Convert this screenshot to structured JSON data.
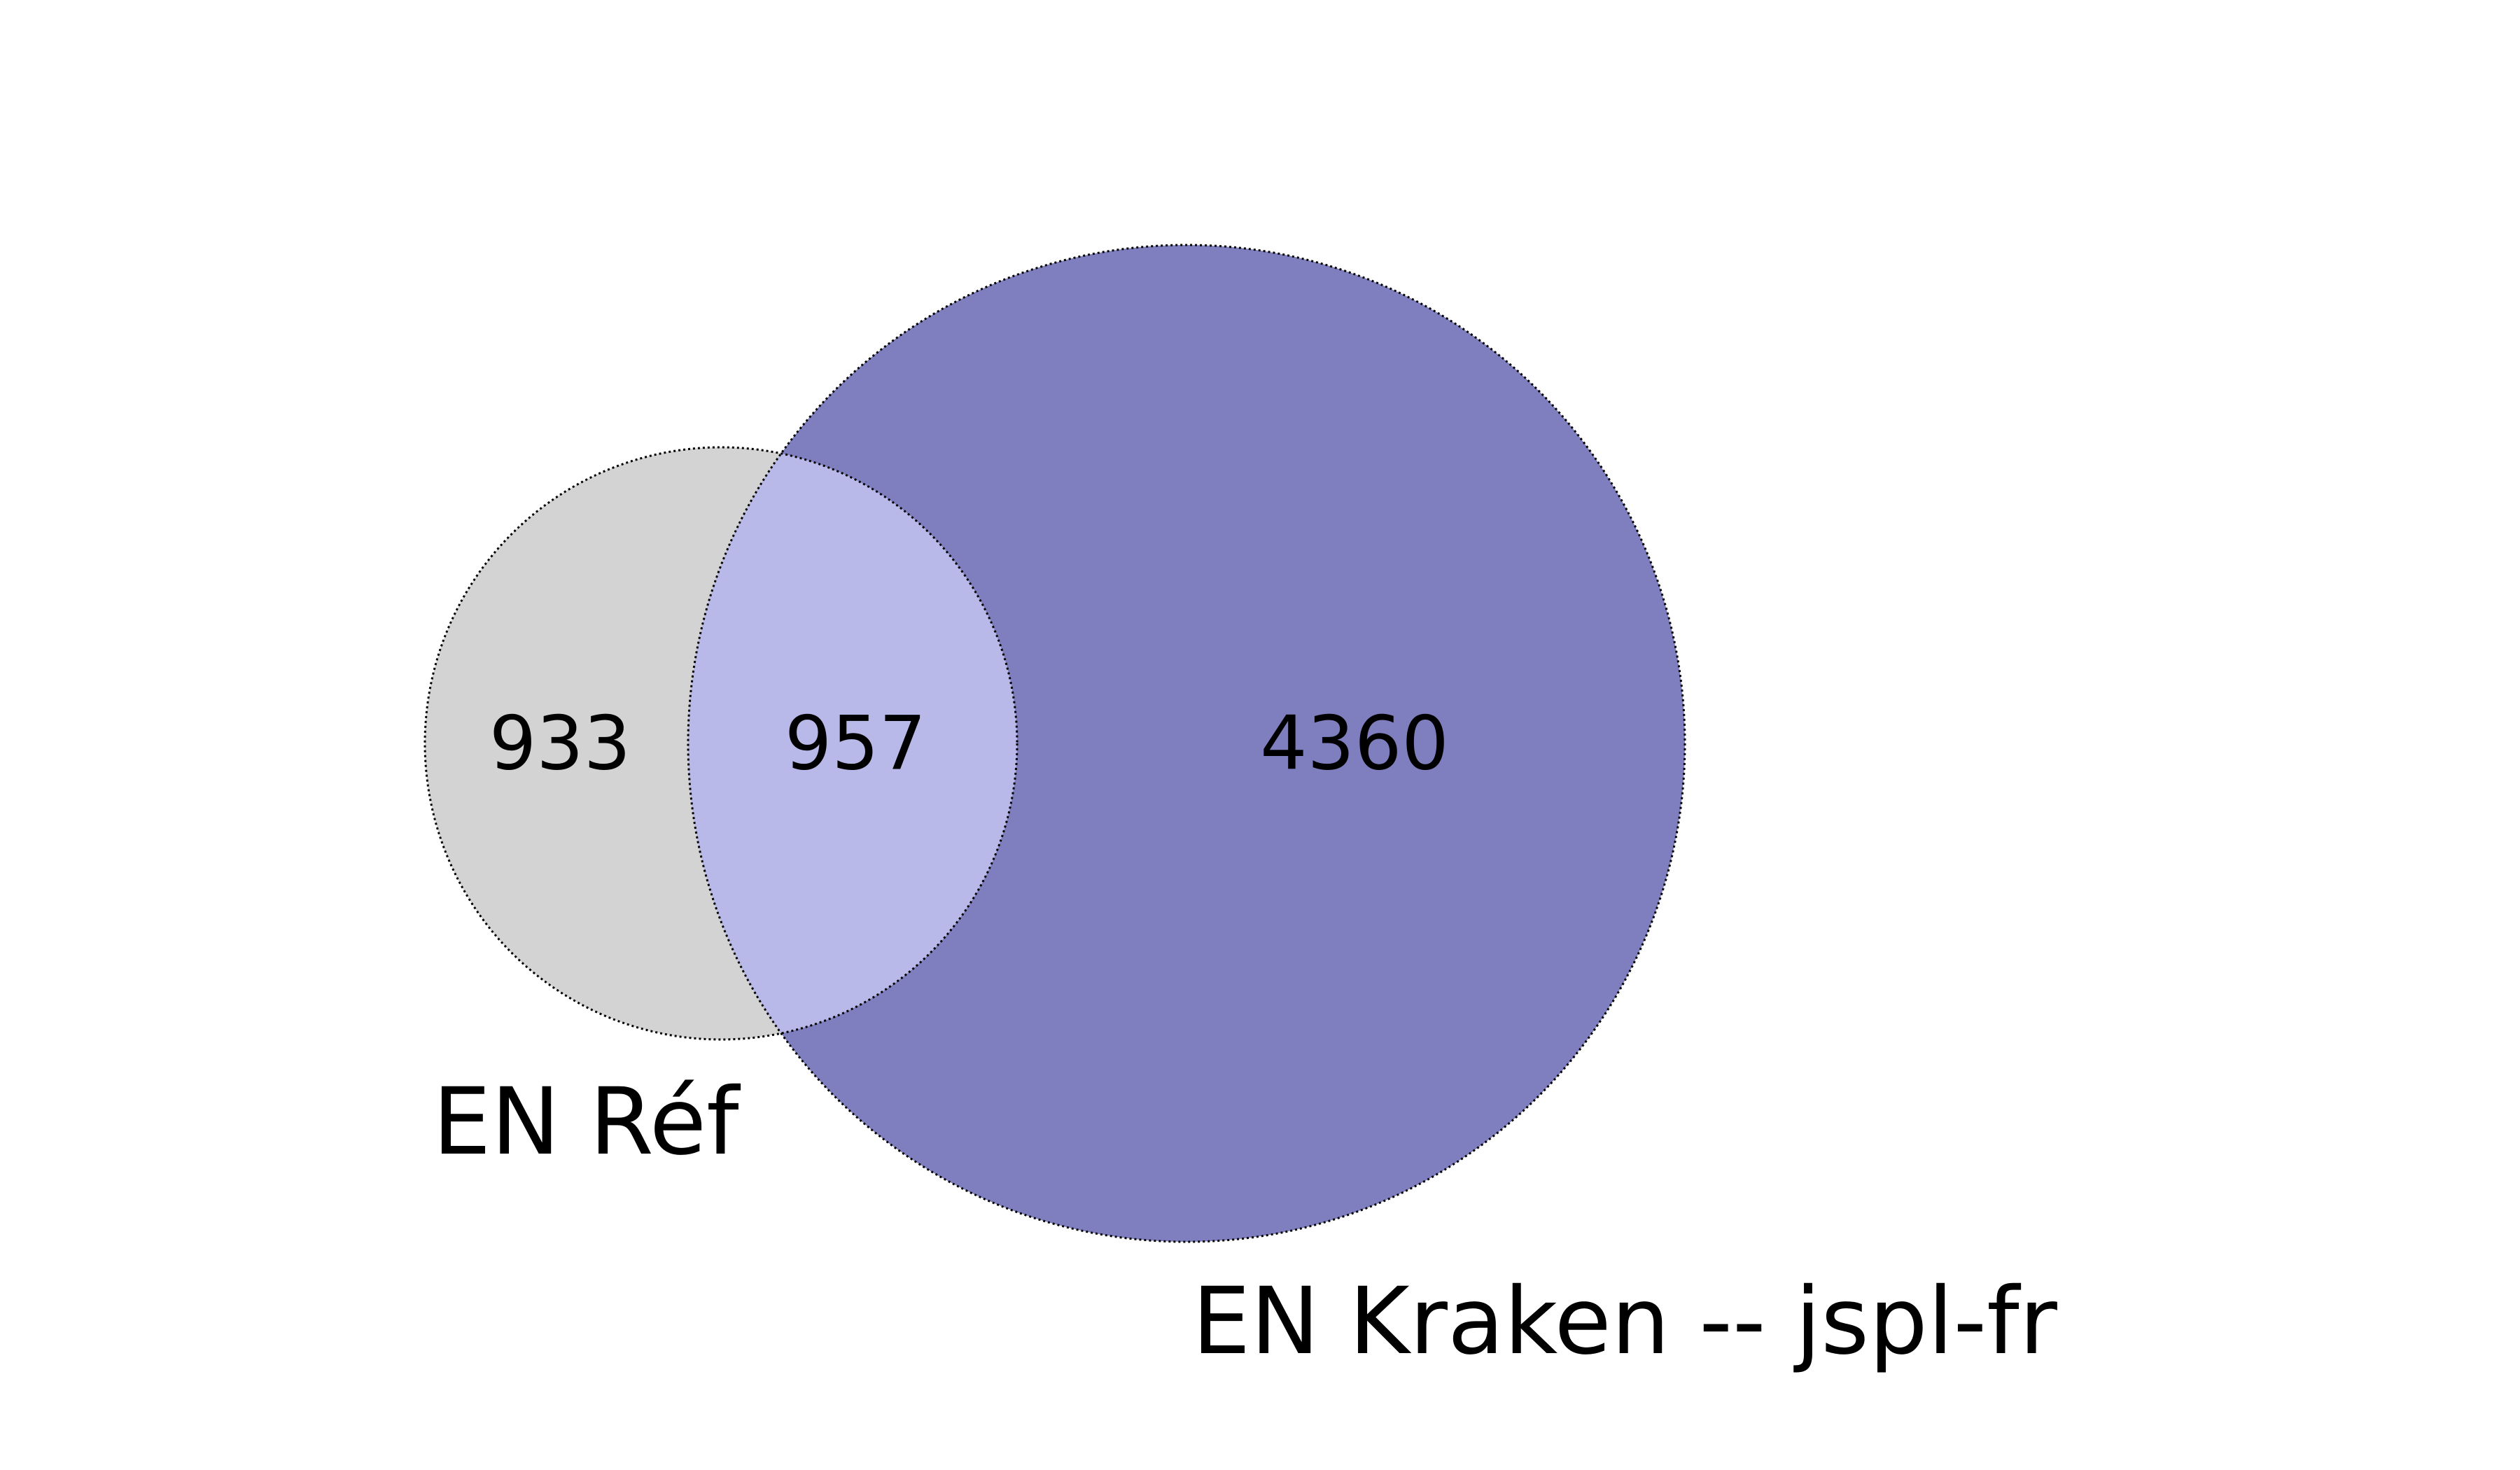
{
  "sets": [
    {
      "label": "EN Réf",
      "fill": "#d3d3d3"
    },
    {
      "label": "EN Kraken -- jspl-fr",
      "fill": "#7f7fbf"
    }
  ],
  "overlap_fill": "#b9b9e9",
  "outline_color": "#000000",
  "regions": {
    "only_ref": "933",
    "both": "957",
    "only_kraken": "4360"
  }
}
